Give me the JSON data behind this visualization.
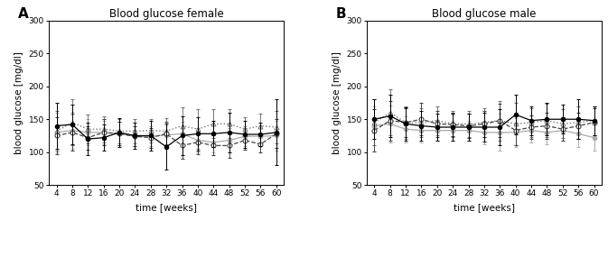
{
  "weeks": [
    4,
    8,
    12,
    16,
    20,
    24,
    28,
    32,
    36,
    40,
    44,
    48,
    52,
    56,
    60
  ],
  "female": {
    "WT": {
      "y": [
        140,
        142,
        120,
        122,
        130,
        125,
        125,
        108,
        125,
        128,
        128,
        130,
        127,
        127,
        130
      ],
      "err": [
        35,
        30,
        25,
        20,
        22,
        20,
        22,
        35,
        30,
        25,
        20,
        30,
        20,
        18,
        50
      ]
    },
    "Tg2576": {
      "y": [
        130,
        133,
        130,
        130,
        128,
        124,
        124,
        126,
        128,
        118,
        115,
        118,
        124,
        124,
        125
      ],
      "err": [
        30,
        28,
        20,
        18,
        18,
        15,
        15,
        15,
        18,
        18,
        15,
        18,
        15,
        14,
        22
      ]
    },
    "IGF1R": {
      "y": [
        132,
        145,
        135,
        135,
        132,
        132,
        133,
        132,
        140,
        135,
        143,
        143,
        135,
        140,
        138
      ],
      "err": [
        30,
        35,
        22,
        20,
        18,
        18,
        18,
        20,
        28,
        30,
        22,
        22,
        18,
        18,
        25
      ]
    },
    "IGF1RTg": {
      "y": [
        125,
        130,
        122,
        130,
        128,
        124,
        122,
        128,
        110,
        115,
        110,
        110,
        118,
        112,
        128
      ],
      "err": [
        28,
        28,
        18,
        20,
        18,
        15,
        15,
        18,
        20,
        18,
        15,
        18,
        14,
        12,
        22
      ]
    }
  },
  "male": {
    "WT": {
      "y": [
        150,
        155,
        143,
        140,
        138,
        138,
        138,
        138,
        138,
        157,
        148,
        150,
        150,
        150,
        148
      ],
      "err": [
        30,
        32,
        25,
        22,
        20,
        20,
        20,
        22,
        28,
        30,
        22,
        25,
        22,
        30,
        22
      ]
    },
    "Tg2576": {
      "y": [
        140,
        143,
        135,
        133,
        133,
        133,
        133,
        130,
        130,
        130,
        133,
        130,
        133,
        128,
        122
      ],
      "err": [
        30,
        28,
        20,
        18,
        16,
        15,
        15,
        18,
        28,
        22,
        18,
        18,
        15,
        20,
        20
      ]
    },
    "IGF1R": {
      "y": [
        145,
        160,
        145,
        145,
        148,
        143,
        143,
        145,
        148,
        143,
        145,
        148,
        143,
        145,
        148
      ],
      "err": [
        35,
        35,
        25,
        22,
        22,
        20,
        20,
        22,
        30,
        32,
        22,
        25,
        22,
        25,
        22
      ]
    },
    "IGF1RTg": {
      "y": [
        133,
        148,
        145,
        150,
        143,
        142,
        140,
        143,
        148,
        133,
        138,
        140,
        135,
        140,
        145
      ],
      "err": [
        32,
        30,
        22,
        25,
        20,
        18,
        18,
        20,
        25,
        22,
        18,
        20,
        18,
        20,
        22
      ]
    }
  },
  "colors": {
    "WT": "#000000",
    "Tg2576": "#aaaaaa",
    "IGF1R": "#777777",
    "IGF1RTg": "#444444"
  },
  "ylim": [
    50,
    300
  ],
  "yticks": [
    50,
    100,
    150,
    200,
    250,
    300
  ],
  "ylabel": "blood glucose [mg/dl]",
  "xlabel": "time [weeks]",
  "title_A": "Blood glucose female",
  "title_B": "Blood glucose male",
  "label_A": "A",
  "label_B": "B"
}
